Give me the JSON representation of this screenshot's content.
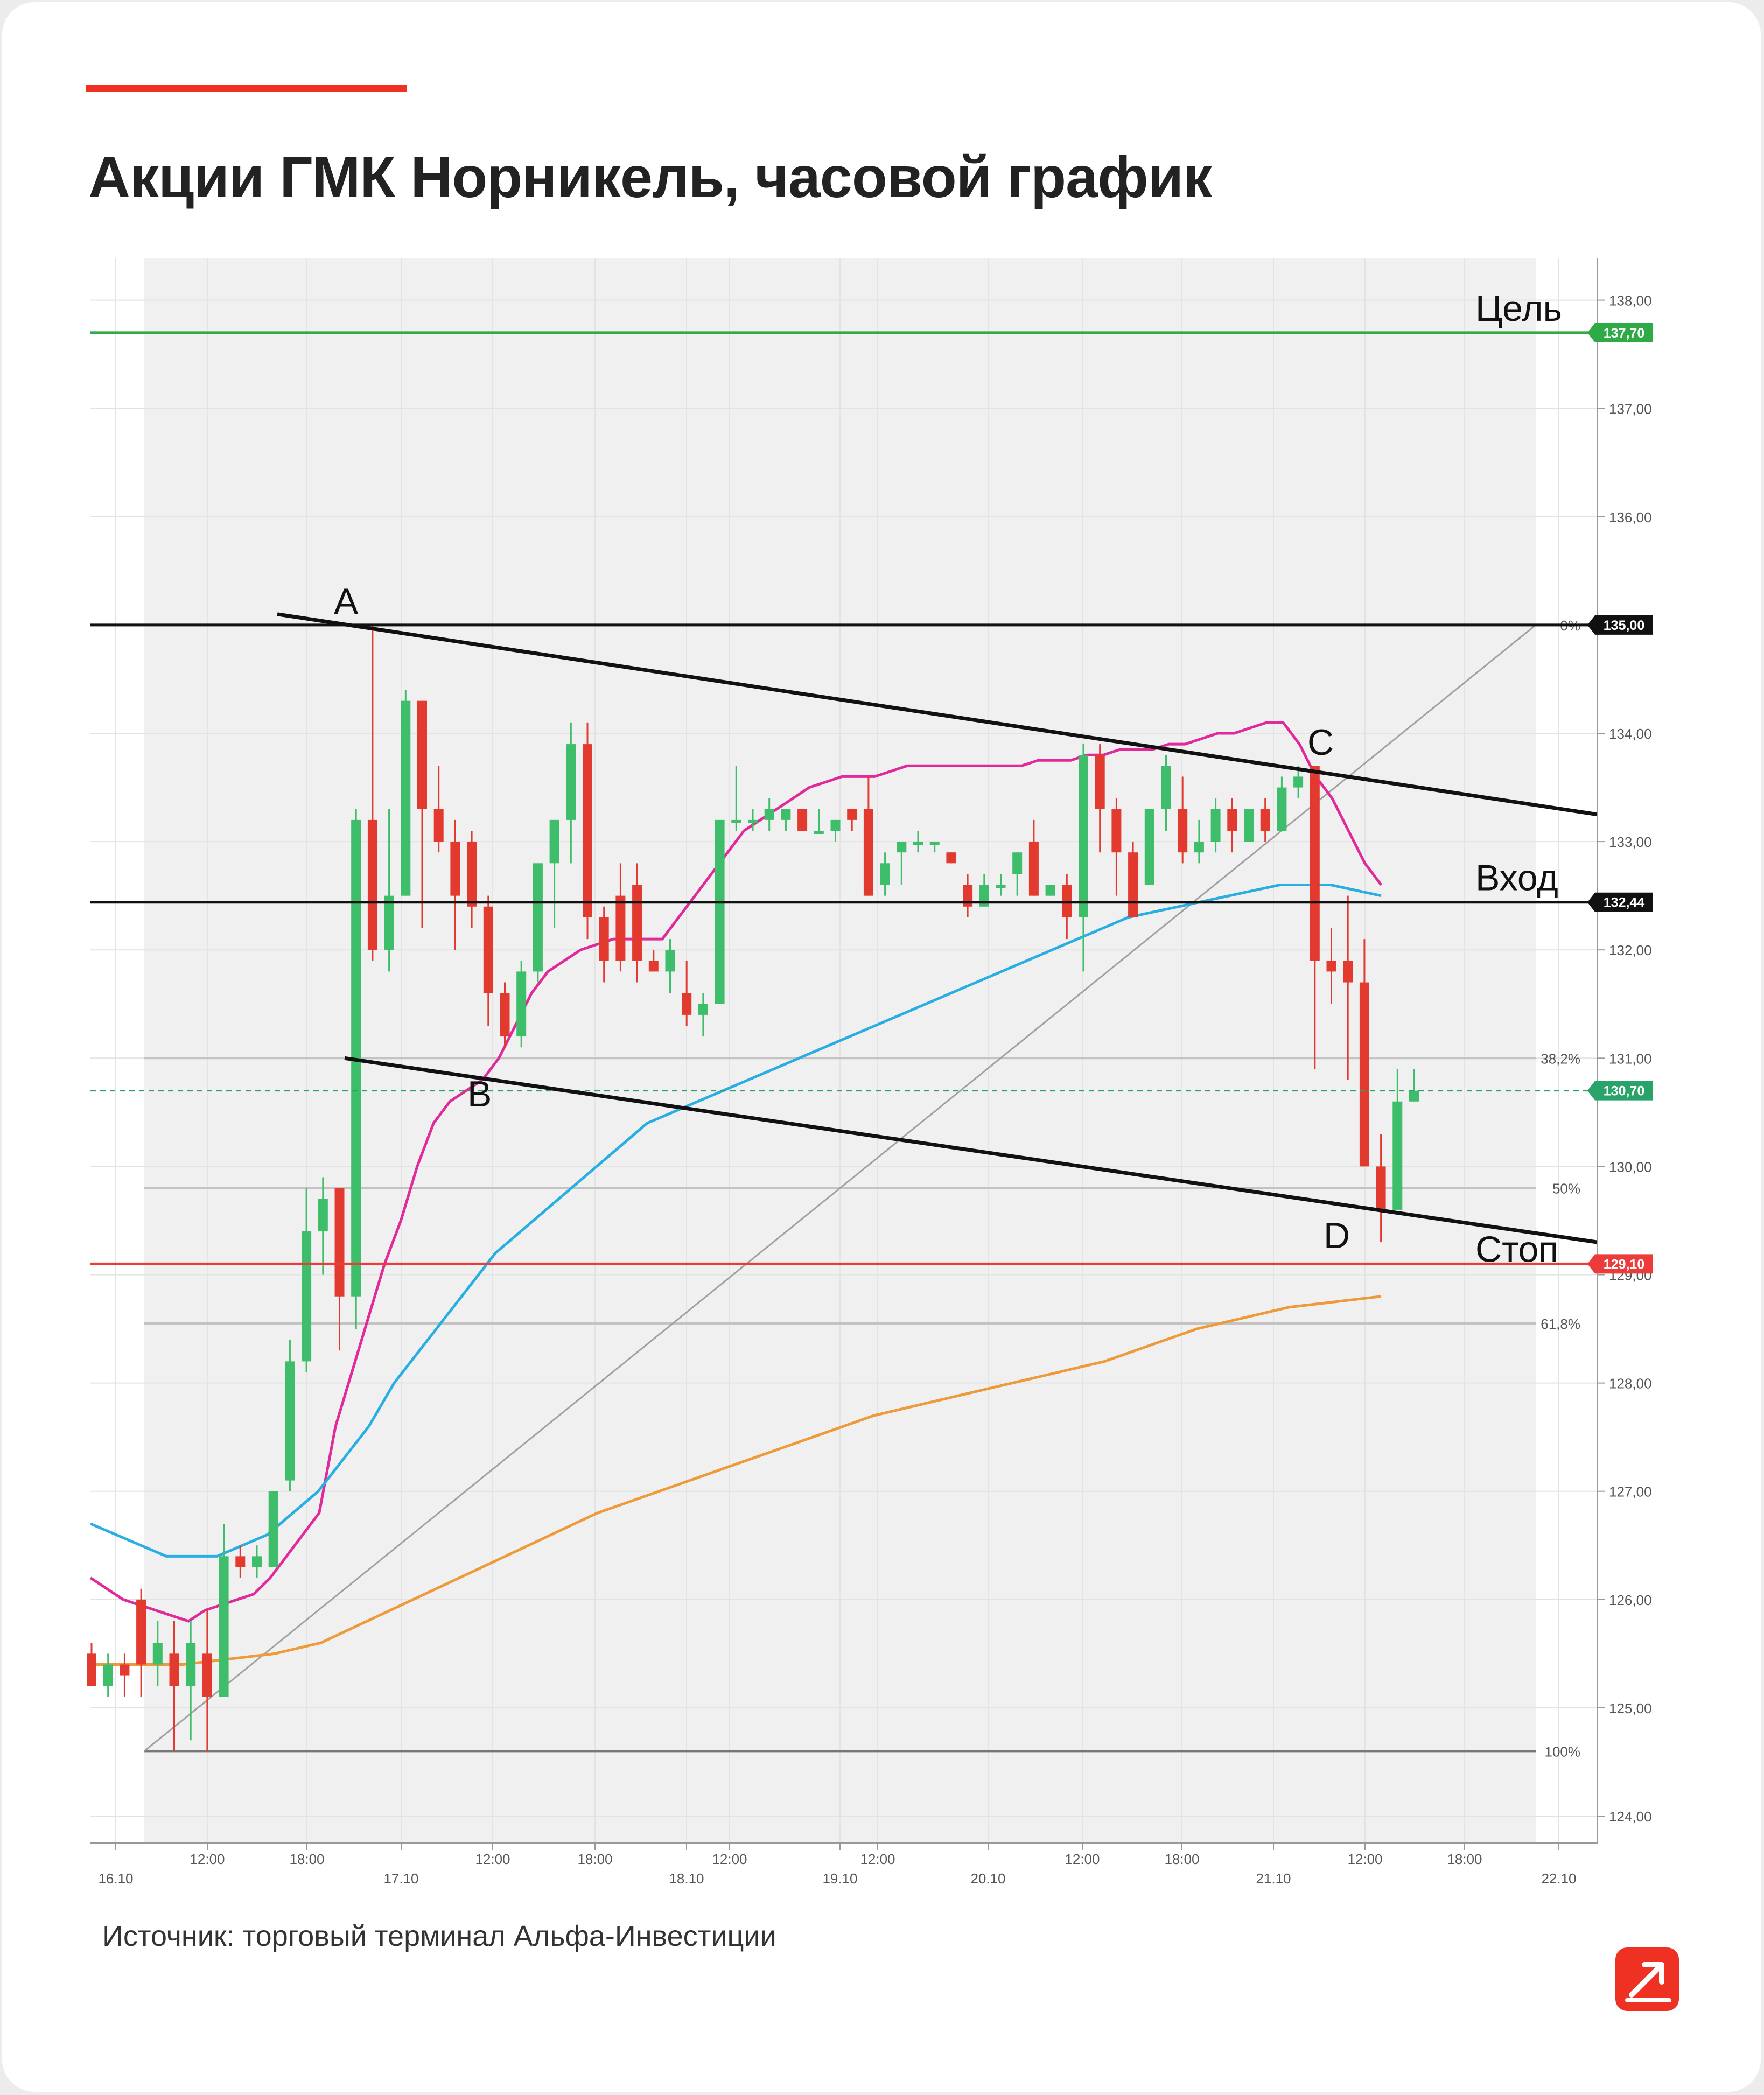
{
  "title": "Акции ГМК Норникель, часовой график",
  "source": "Источник: торговый терминал Альфа-Инвестиции",
  "colors": {
    "accent": "#ef3124",
    "bull": "#3ebd6a",
    "bear": "#e33a2f",
    "ema_fast": "#e0299a",
    "ema_mid": "#29aee3",
    "ema_slow": "#ef9a3a",
    "target": "#2eaa46",
    "stop": "#ec3b3b",
    "fib": "#c3c3c3",
    "trend": "#111111",
    "last": "#2aa36b"
  },
  "chart_data": {
    "type": "candlestick",
    "title": "Акции ГМК Норникель, часовой график",
    "ylim": [
      123.75,
      138.4
    ],
    "y_ticks": [
      "124,00",
      "125,00",
      "126,00",
      "127,00",
      "128,00",
      "129,00",
      "130,00",
      "131,00",
      "132,00",
      "133,00",
      "134,00",
      "135,00",
      "136,00",
      "137,00",
      "138,00"
    ],
    "x_ticks": [
      "16.10",
      "12:00",
      "18:00",
      "17.10",
      "12:00",
      "18:00",
      "18.10",
      "12:00",
      "19.10",
      "12:00",
      "20.10",
      "12:00",
      "18:00",
      "21.10",
      "12:00",
      "18:00",
      "22.10"
    ],
    "candles": [
      {
        "o": 125.5,
        "h": 125.6,
        "l": 125.2,
        "c": 125.2
      },
      {
        "o": 125.2,
        "h": 125.5,
        "l": 125.1,
        "c": 125.4
      },
      {
        "o": 125.4,
        "h": 125.5,
        "l": 125.1,
        "c": 125.3
      },
      {
        "o": 126.0,
        "h": 126.1,
        "l": 125.1,
        "c": 125.4
      },
      {
        "o": 125.4,
        "h": 125.8,
        "l": 125.2,
        "c": 125.6
      },
      {
        "o": 125.5,
        "h": 125.8,
        "l": 124.6,
        "c": 125.2
      },
      {
        "o": 125.2,
        "h": 125.8,
        "l": 124.7,
        "c": 125.6
      },
      {
        "o": 125.5,
        "h": 125.9,
        "l": 124.6,
        "c": 125.1
      },
      {
        "o": 125.1,
        "h": 126.7,
        "l": 125.1,
        "c": 126.4
      },
      {
        "o": 126.4,
        "h": 126.5,
        "l": 126.2,
        "c": 126.3
      },
      {
        "o": 126.3,
        "h": 126.5,
        "l": 126.2,
        "c": 126.4
      },
      {
        "o": 126.3,
        "h": 127.0,
        "l": 126.3,
        "c": 127.0
      },
      {
        "o": 127.1,
        "h": 128.4,
        "l": 127.0,
        "c": 128.2
      },
      {
        "o": 128.2,
        "h": 129.8,
        "l": 128.1,
        "c": 129.4
      },
      {
        "o": 129.4,
        "h": 129.9,
        "l": 129.0,
        "c": 129.7
      },
      {
        "o": 129.8,
        "h": 129.8,
        "l": 128.3,
        "c": 128.8
      },
      {
        "o": 128.8,
        "h": 133.3,
        "l": 128.5,
        "c": 133.2
      },
      {
        "o": 133.2,
        "h": 135.0,
        "l": 131.9,
        "c": 132.0
      },
      {
        "o": 132.0,
        "h": 133.3,
        "l": 131.8,
        "c": 132.5
      },
      {
        "o": 132.5,
        "h": 134.4,
        "l": 132.5,
        "c": 134.3
      },
      {
        "o": 134.3,
        "h": 134.3,
        "l": 132.2,
        "c": 133.3
      },
      {
        "o": 133.3,
        "h": 133.7,
        "l": 132.9,
        "c": 133.0
      },
      {
        "o": 133.0,
        "h": 133.2,
        "l": 132.0,
        "c": 132.5
      },
      {
        "o": 133.0,
        "h": 133.1,
        "l": 132.2,
        "c": 132.4
      },
      {
        "o": 132.4,
        "h": 132.5,
        "l": 131.3,
        "c": 131.6
      },
      {
        "o": 131.6,
        "h": 131.7,
        "l": 131.1,
        "c": 131.2
      },
      {
        "o": 131.2,
        "h": 131.9,
        "l": 131.1,
        "c": 131.8
      },
      {
        "o": 131.8,
        "h": 132.7,
        "l": 131.7,
        "c": 132.8
      },
      {
        "o": 132.8,
        "h": 133.2,
        "l": 132.2,
        "c": 133.2
      },
      {
        "o": 133.2,
        "h": 134.1,
        "l": 132.8,
        "c": 133.9
      },
      {
        "o": 133.9,
        "h": 134.1,
        "l": 132.1,
        "c": 132.3
      },
      {
        "o": 132.3,
        "h": 132.4,
        "l": 131.7,
        "c": 131.9
      },
      {
        "o": 132.5,
        "h": 132.8,
        "l": 131.8,
        "c": 131.9
      },
      {
        "o": 132.6,
        "h": 132.8,
        "l": 131.7,
        "c": 131.9
      },
      {
        "o": 131.9,
        "h": 132.0,
        "l": 131.8,
        "c": 131.8
      },
      {
        "o": 131.8,
        "h": 132.1,
        "l": 131.6,
        "c": 132.0
      },
      {
        "o": 131.6,
        "h": 131.9,
        "l": 131.3,
        "c": 131.4
      },
      {
        "o": 131.4,
        "h": 131.6,
        "l": 131.2,
        "c": 131.5
      },
      {
        "o": 131.5,
        "h": 133.1,
        "l": 131.5,
        "c": 133.2
      },
      {
        "o": 133.2,
        "h": 133.7,
        "l": 133.1,
        "c": 133.2
      },
      {
        "o": 133.2,
        "h": 133.3,
        "l": 133.1,
        "c": 133.2
      },
      {
        "o": 133.2,
        "h": 133.4,
        "l": 133.1,
        "c": 133.3
      },
      {
        "o": 133.2,
        "h": 133.3,
        "l": 133.1,
        "c": 133.3
      },
      {
        "o": 133.3,
        "h": 133.3,
        "l": 133.1,
        "c": 133.1
      },
      {
        "o": 133.1,
        "h": 133.3,
        "l": 133.1,
        "c": 133.1
      },
      {
        "o": 133.1,
        "h": 133.2,
        "l": 133.0,
        "c": 133.2
      },
      {
        "o": 133.3,
        "h": 133.3,
        "l": 133.1,
        "c": 133.2
      },
      {
        "o": 133.3,
        "h": 133.6,
        "l": 132.5,
        "c": 132.5
      },
      {
        "o": 132.6,
        "h": 132.9,
        "l": 132.5,
        "c": 132.8
      },
      {
        "o": 132.9,
        "h": 133.0,
        "l": 132.6,
        "c": 133.0
      },
      {
        "o": 133.0,
        "h": 133.1,
        "l": 132.9,
        "c": 133.0
      },
      {
        "o": 133.0,
        "h": 133.0,
        "l": 132.9,
        "c": 133.0
      },
      {
        "o": 132.9,
        "h": 132.9,
        "l": 132.8,
        "c": 132.8
      },
      {
        "o": 132.6,
        "h": 132.7,
        "l": 132.3,
        "c": 132.4
      },
      {
        "o": 132.4,
        "h": 132.7,
        "l": 132.4,
        "c": 132.6
      },
      {
        "o": 132.6,
        "h": 132.7,
        "l": 132.5,
        "c": 132.6
      },
      {
        "o": 132.7,
        "h": 132.9,
        "l": 132.5,
        "c": 132.9
      },
      {
        "o": 133.0,
        "h": 133.2,
        "l": 132.5,
        "c": 132.5
      },
      {
        "o": 132.5,
        "h": 132.6,
        "l": 132.5,
        "c": 132.6
      },
      {
        "o": 132.6,
        "h": 132.7,
        "l": 132.1,
        "c": 132.3
      },
      {
        "o": 132.3,
        "h": 133.9,
        "l": 131.8,
        "c": 133.8
      },
      {
        "o": 133.8,
        "h": 133.9,
        "l": 132.9,
        "c": 133.3
      },
      {
        "o": 133.3,
        "h": 133.4,
        "l": 132.5,
        "c": 132.9
      },
      {
        "o": 132.9,
        "h": 133.0,
        "l": 132.3,
        "c": 132.3
      },
      {
        "o": 132.6,
        "h": 133.2,
        "l": 132.6,
        "c": 133.3
      },
      {
        "o": 133.3,
        "h": 133.8,
        "l": 133.1,
        "c": 133.7
      },
      {
        "o": 133.3,
        "h": 133.6,
        "l": 132.8,
        "c": 132.9
      },
      {
        "o": 132.9,
        "h": 133.2,
        "l": 132.8,
        "c": 133.0
      },
      {
        "o": 133.0,
        "h": 133.4,
        "l": 132.9,
        "c": 133.3
      },
      {
        "o": 133.3,
        "h": 133.4,
        "l": 132.9,
        "c": 133.1
      },
      {
        "o": 133.0,
        "h": 133.3,
        "l": 133.0,
        "c": 133.3
      },
      {
        "o": 133.3,
        "h": 133.4,
        "l": 133.0,
        "c": 133.1
      },
      {
        "o": 133.1,
        "h": 133.6,
        "l": 133.1,
        "c": 133.5
      },
      {
        "o": 133.5,
        "h": 133.7,
        "l": 133.4,
        "c": 133.6
      },
      {
        "o": 133.7,
        "h": 133.7,
        "l": 130.9,
        "c": 131.9
      },
      {
        "o": 131.9,
        "h": 132.2,
        "l": 131.5,
        "c": 131.8
      },
      {
        "o": 131.9,
        "h": 132.5,
        "l": 130.8,
        "c": 131.7
      },
      {
        "o": 131.7,
        "h": 132.1,
        "l": 130.1,
        "c": 130.0
      },
      {
        "o": 130.0,
        "h": 130.3,
        "l": 129.3,
        "c": 129.6
      },
      {
        "o": 129.6,
        "h": 130.9,
        "l": 129.6,
        "c": 130.6
      },
      {
        "o": 130.6,
        "h": 130.9,
        "l": 130.6,
        "c": 130.7
      }
    ],
    "series": [
      {
        "name": "",
        "values": [
          126.2,
          126.1,
          126.0,
          125.95,
          125.9,
          125.85,
          125.8,
          125.9,
          125.95,
          126.0,
          126.05,
          126.2,
          126.4,
          126.6,
          126.8,
          127.6,
          128.1,
          128.6,
          129.1,
          129.5,
          130.0,
          130.4,
          130.6,
          130.7,
          130.8,
          131.0,
          131.3,
          131.6,
          131.8,
          131.9,
          132.0,
          132.05,
          132.1,
          132.1,
          132.1,
          132.1,
          132.3,
          132.5,
          132.7,
          132.9,
          133.1,
          133.2,
          133.3,
          133.4,
          133.5,
          133.55,
          133.6,
          133.6,
          133.6,
          133.65,
          133.7,
          133.7,
          133.7,
          133.7,
          133.7,
          133.7,
          133.7,
          133.7,
          133.75,
          133.75,
          133.75,
          133.8,
          133.8,
          133.85,
          133.85,
          133.85,
          133.9,
          133.9,
          133.95,
          134.0,
          134.0,
          134.05,
          134.1,
          134.1,
          133.9,
          133.6,
          133.4,
          133.1,
          132.8,
          132.6
        ],
        "role": "ema_fast"
      },
      {
        "name": "",
        "values": [
          126.7,
          126.6,
          126.5,
          126.4,
          126.4,
          126.4,
          126.5,
          126.6,
          126.8,
          127.0,
          127.3,
          127.6,
          128.0,
          128.3,
          128.6,
          128.9,
          129.2,
          129.4,
          129.6,
          129.8,
          130.0,
          130.2,
          130.4,
          130.5,
          130.6,
          130.7,
          130.8,
          130.9,
          131.0,
          131.1,
          131.2,
          131.3,
          131.4,
          131.5,
          131.6,
          131.7,
          131.8,
          131.9,
          132.0,
          132.1,
          132.2,
          132.3,
          132.35,
          132.4,
          132.45,
          132.5,
          132.55,
          132.6,
          132.6,
          132.6,
          132.55,
          132.5
        ],
        "role": "ema_mid"
      },
      {
        "name": "",
        "values": [
          125.4,
          125.4,
          125.4,
          125.45,
          125.5,
          125.6,
          125.8,
          126.0,
          126.2,
          126.4,
          126.6,
          126.8,
          126.95,
          127.1,
          127.25,
          127.4,
          127.55,
          127.7,
          127.8,
          127.9,
          128.0,
          128.1,
          128.2,
          128.35,
          128.5,
          128.6,
          128.7,
          128.75,
          128.8
        ],
        "role": "ema_slow"
      }
    ],
    "horizontal_levels": [
      {
        "label": "Цель",
        "value": 137.7,
        "badge": "137,70",
        "role": "target"
      },
      {
        "label": "",
        "value": 135.0,
        "badge": "135,00",
        "role": "fib0"
      },
      {
        "label": "Вход",
        "value": 132.44,
        "badge": "132,44",
        "role": "entry"
      },
      {
        "label": "",
        "value": 130.7,
        "badge": "130,70",
        "role": "last"
      },
      {
        "label": "Стоп",
        "value": 129.1,
        "badge": "129,10",
        "role": "stop"
      }
    ],
    "fib_levels": [
      {
        "label": "0%",
        "value": 135.0
      },
      {
        "label": "38,2%",
        "value": 131.0
      },
      {
        "label": "50%",
        "value": 129.8
      },
      {
        "label": "61,8%",
        "value": 128.55
      },
      {
        "label": "100%",
        "value": 124.6
      }
    ],
    "points": [
      {
        "label": "A"
      },
      {
        "label": "B"
      },
      {
        "label": "C"
      },
      {
        "label": "D"
      }
    ]
  }
}
